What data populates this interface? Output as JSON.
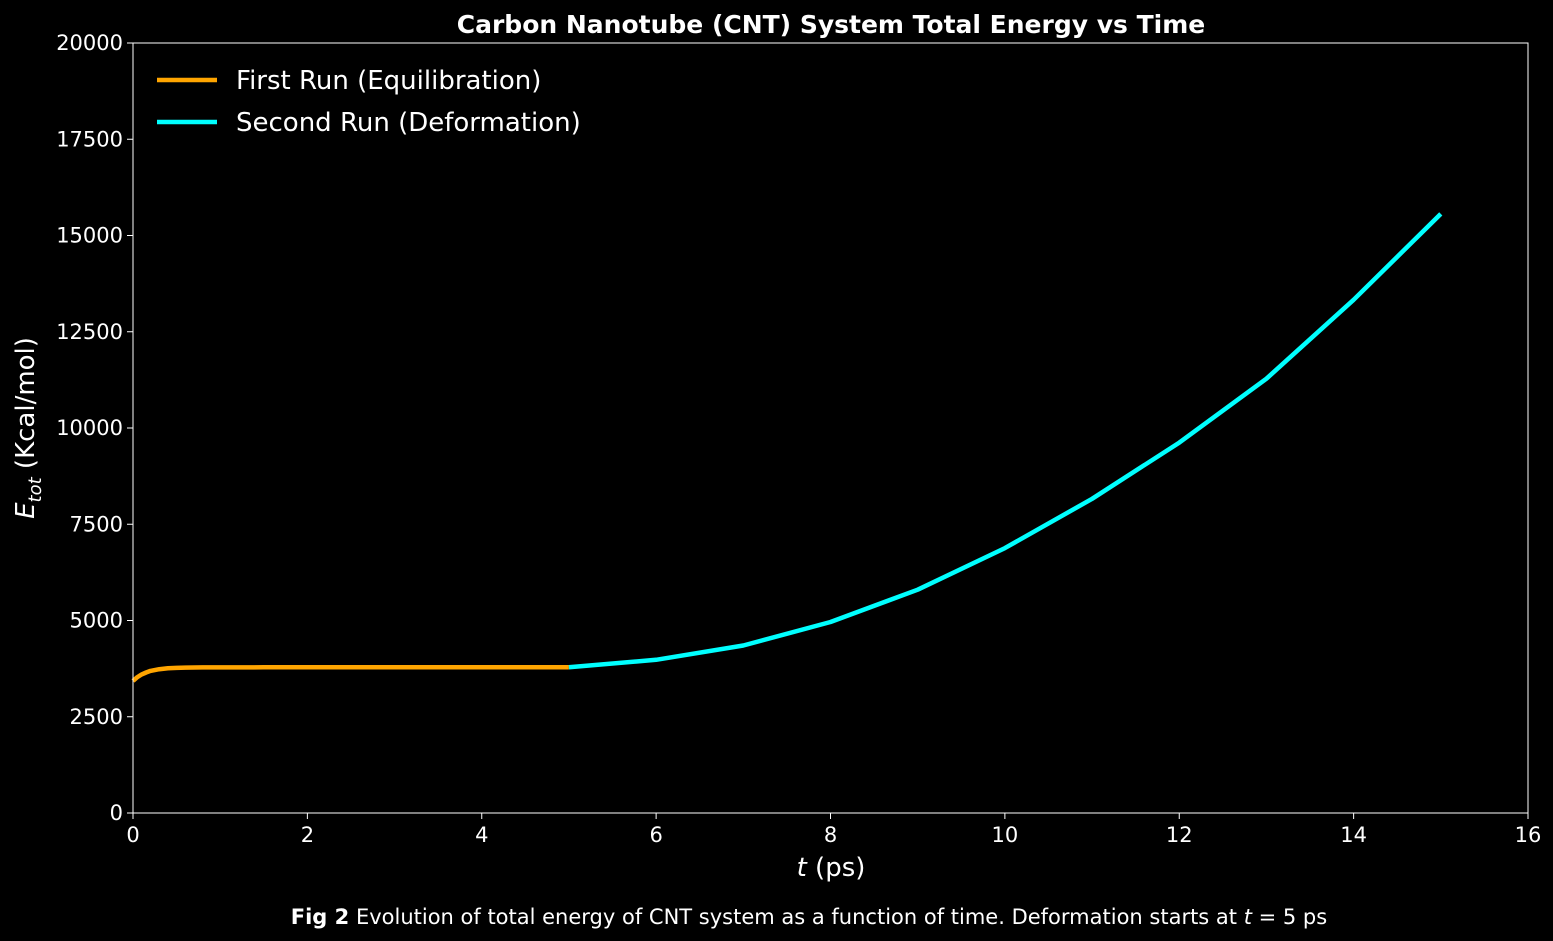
{
  "chart_data": {
    "type": "line",
    "title": "Carbon Nanotube (CNT) System Total Energy vs Time",
    "xlabel": {
      "variable": "t",
      "unit": " (ps)"
    },
    "ylabel": {
      "variable": "E",
      "subscript": "tot",
      "unit": " (Kcal/mol)"
    },
    "xlim": [
      0,
      16
    ],
    "ylim": [
      0,
      20000
    ],
    "xticks": [
      0,
      2,
      4,
      6,
      8,
      10,
      12,
      14,
      16
    ],
    "yticks": [
      0,
      2500,
      5000,
      7500,
      10000,
      12500,
      15000,
      17500,
      20000
    ],
    "grid": false,
    "legend_position": "top-left",
    "series": [
      {
        "name": "First Run (Equilibration)",
        "color": "#ffa500",
        "x": [
          0,
          0.05,
          0.1,
          0.15,
          0.2,
          0.3,
          0.4,
          0.5,
          0.6,
          0.8,
          1.0,
          1.5,
          2.0,
          2.5,
          3.0,
          3.5,
          4.0,
          4.5,
          5.0
        ],
        "y": [
          3430,
          3530,
          3600,
          3650,
          3690,
          3735,
          3758,
          3770,
          3776,
          3781,
          3783,
          3784,
          3784,
          3784,
          3784,
          3784,
          3784,
          3784,
          3784
        ]
      },
      {
        "name": "Second Run (Deformation)",
        "color": "#00ffff",
        "x": [
          5,
          6,
          7,
          8,
          9,
          10,
          11,
          12,
          13,
          14,
          15
        ],
        "y": [
          3784,
          3980,
          4350,
          4960,
          5800,
          6880,
          8160,
          9620,
          11280,
          13330,
          15560
        ]
      }
    ]
  },
  "caption": {
    "bold": "Fig 2",
    "text_before": " Evolution of total energy of CNT system as a function of time. Deformation starts at ",
    "variable": "t",
    "text_after": " = 5 ps"
  }
}
